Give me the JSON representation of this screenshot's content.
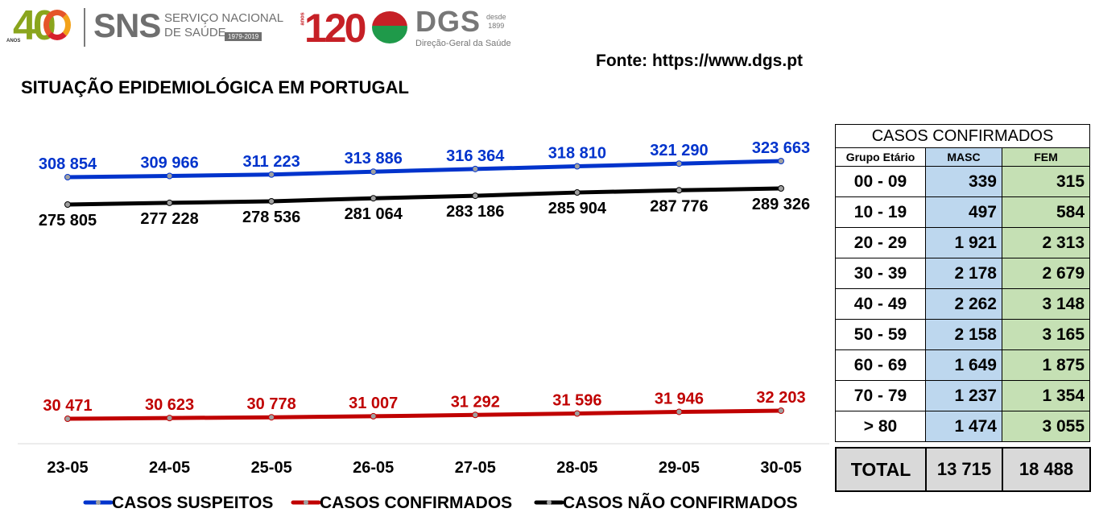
{
  "header": {
    "logo_40": "40",
    "logo_40_sub": "ANOS",
    "logo_sns": "SNS",
    "logo_sns_line1": "SERVIÇO NACIONAL",
    "logo_sns_line2": "DE SAÚDE",
    "logo_sns_years": "1979-2019",
    "logo_120": "120",
    "logo_120_sub": "anos",
    "logo_dgs": "DGS",
    "logo_dgs_since_1": "desde",
    "logo_dgs_since_2": "1899",
    "logo_dgs_sub": "Direção-Geral da Saúde",
    "source": "Fonte: https://www.dgs.pt",
    "title": "SITUAÇÃO EPIDEMIOLÓGICA EM PORTUGAL"
  },
  "chart_data": {
    "type": "line",
    "categories": [
      "23-05",
      "24-05",
      "25-05",
      "26-05",
      "27-05",
      "28-05",
      "29-05",
      "30-05"
    ],
    "series": [
      {
        "name": "CASOS SUSPEITOS",
        "color": "#0033cc",
        "values": [
          308854,
          309966,
          311223,
          313886,
          316364,
          318810,
          321290,
          323663
        ],
        "labels": [
          "308 854",
          "309 966",
          "311 223",
          "313 886",
          "316 364",
          "318 810",
          "321 290",
          "323 663"
        ]
      },
      {
        "name": "CASOS CONFIRMADOS",
        "color": "#c00000",
        "values": [
          30471,
          30623,
          30778,
          31007,
          31292,
          31596,
          31946,
          32203
        ],
        "labels": [
          "30 471",
          "30 623",
          "30 778",
          "31 007",
          "31 292",
          "31 596",
          "31 946",
          "32 203"
        ]
      },
      {
        "name": "CASOS NÃO CONFIRMADOS",
        "color": "#000000",
        "values": [
          275805,
          277228,
          278536,
          281064,
          283186,
          285904,
          287776,
          289326
        ],
        "labels": [
          "275 805",
          "277 228",
          "278 536",
          "281 064",
          "283 186",
          "285 904",
          "287 776",
          "289 326"
        ]
      }
    ],
    "legend_position": "bottom"
  },
  "table": {
    "title": "CASOS CONFIRMADOS",
    "headers": [
      "Grupo Etário",
      "MASC",
      "FEM"
    ],
    "rows": [
      {
        "group": "00 - 09",
        "masc": "339",
        "fem": "315"
      },
      {
        "group": "10 - 19",
        "masc": "497",
        "fem": "584"
      },
      {
        "group": "20 - 29",
        "masc": "1 921",
        "fem": "2 313"
      },
      {
        "group": "30 - 39",
        "masc": "2 178",
        "fem": "2 679"
      },
      {
        "group": "40 - 49",
        "masc": "2 262",
        "fem": "3 148"
      },
      {
        "group": "50 - 59",
        "masc": "2 158",
        "fem": "3 165"
      },
      {
        "group": "60 - 69",
        "masc": "1 649",
        "fem": "1 875"
      },
      {
        "group": "70 - 79",
        "masc": "1 237",
        "fem": "1 354"
      },
      {
        "group": "> 80",
        "masc": "1 474",
        "fem": "3 055"
      }
    ],
    "total": {
      "label": "TOTAL",
      "masc": "13 715",
      "fem": "18 488"
    }
  }
}
